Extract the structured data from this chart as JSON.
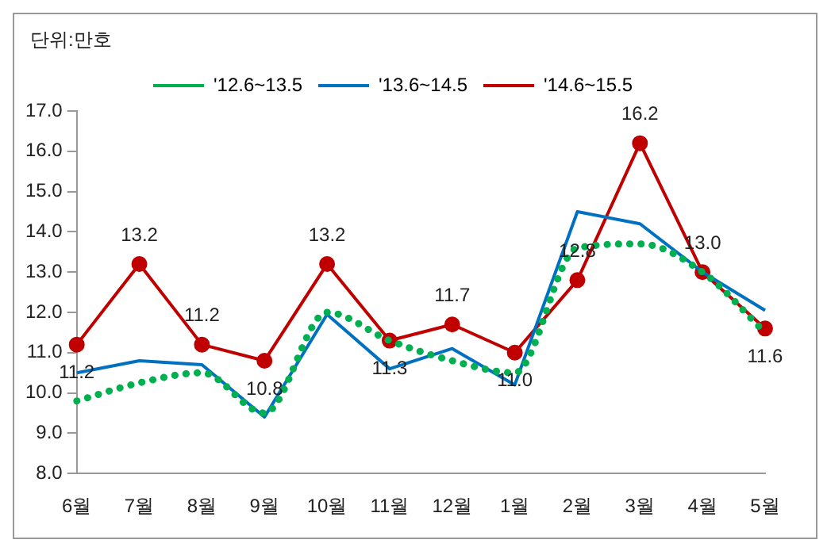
{
  "chart_data": {
    "type": "line",
    "annotations": [
      "단위:만호"
    ],
    "categories": [
      "6월",
      "7월",
      "8월",
      "9월",
      "10월",
      "11월",
      "12월",
      "1월",
      "2월",
      "3월",
      "4월",
      "5월"
    ],
    "series": [
      {
        "name": "'12.6~13.5",
        "color": "#00b050",
        "line_style": "dotted",
        "marker": "none",
        "values": [
          9.8,
          10.25,
          10.5,
          9.5,
          12.0,
          11.3,
          10.8,
          10.5,
          13.6,
          13.7,
          13.0,
          11.5
        ]
      },
      {
        "name": "'13.6~14.5",
        "color": "#0070c0",
        "line_style": "solid",
        "marker": "none",
        "values": [
          10.5,
          10.8,
          10.7,
          9.4,
          11.95,
          10.6,
          11.1,
          10.2,
          14.5,
          14.2,
          13.0,
          12.05
        ]
      },
      {
        "name": "'14.6~15.5",
        "color": "#c00000",
        "line_style": "solid",
        "marker": "circle",
        "values": [
          11.2,
          13.2,
          11.2,
          10.8,
          13.2,
          11.3,
          11.7,
          11.0,
          12.8,
          16.2,
          13.0,
          11.6
        ],
        "value_labels": [
          "11.2",
          "13.2",
          "11.2",
          "10.8",
          "13.2",
          "11.3",
          "11.7",
          "11.0",
          "12.8",
          "16.2",
          "13.0",
          "11.6"
        ]
      }
    ],
    "ylim": [
      8,
      17
    ],
    "yticks": [
      {
        "value": 8,
        "label": "8.0"
      },
      {
        "value": 9,
        "label": "9.0"
      },
      {
        "value": 10,
        "label": "10.0"
      },
      {
        "value": 11,
        "label": "11.0"
      },
      {
        "value": 12,
        "label": "12.0"
      },
      {
        "value": 13,
        "label": "13.0"
      },
      {
        "value": 14,
        "label": "14.0"
      },
      {
        "value": 15,
        "label": "15.0"
      },
      {
        "value": 16,
        "label": "16.0"
      },
      {
        "value": 17,
        "label": "17.0"
      }
    ],
    "grid": false,
    "legend": "top"
  }
}
